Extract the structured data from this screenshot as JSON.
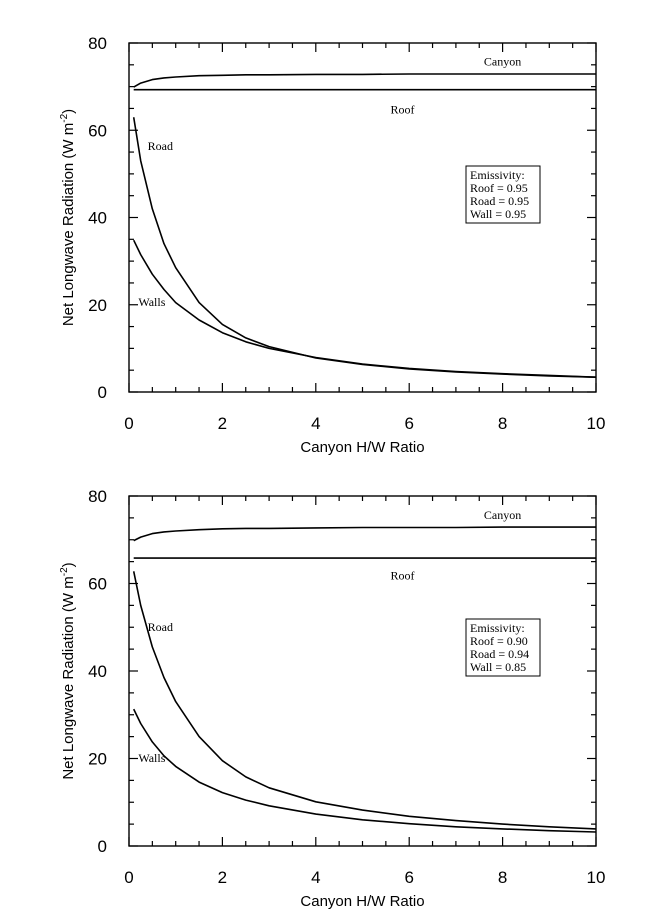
{
  "chart_data": [
    {
      "type": "line",
      "xlabel": "Canyon H/W Ratio",
      "ylabel": "Net Longwave Radiation (W m",
      "ylabel_sup": "-2",
      "ylabel_close": ")",
      "xlim": [
        0,
        10
      ],
      "ylim": [
        0,
        80
      ],
      "xticks": [
        0,
        2,
        4,
        6,
        8,
        10
      ],
      "yticks": [
        0,
        20,
        40,
        60,
        80
      ],
      "x": [
        0.1,
        0.25,
        0.5,
        0.75,
        1,
        1.5,
        2,
        2.5,
        3,
        4,
        5,
        6,
        7,
        8,
        9,
        10
      ],
      "series": [
        {
          "name": "Canyon",
          "values": [
            69.9,
            70.8,
            71.6,
            72.0,
            72.2,
            72.5,
            72.6,
            72.7,
            72.7,
            72.8,
            72.8,
            72.9,
            72.9,
            72.9,
            72.9,
            72.9
          ]
        },
        {
          "name": "Roof",
          "values": [
            69.3,
            69.3,
            69.3,
            69.3,
            69.3,
            69.3,
            69.3,
            69.3,
            69.3,
            69.3,
            69.3,
            69.3,
            69.3,
            69.3,
            69.3,
            69.3
          ]
        },
        {
          "name": "Road",
          "values": [
            63.0,
            53.0,
            42.0,
            34.0,
            28.5,
            20.5,
            15.5,
            12.4,
            10.4,
            7.8,
            6.3,
            5.3,
            4.6,
            4.1,
            3.7,
            3.4
          ]
        },
        {
          "name": "Walls",
          "values": [
            34.8,
            31.5,
            27.0,
            23.5,
            20.5,
            16.5,
            13.6,
            11.5,
            10.0,
            7.9,
            6.4,
            5.4,
            4.7,
            4.2,
            3.8,
            3.4
          ]
        }
      ],
      "series_labels": {
        "Canyon": "Canyon",
        "Roof": "Roof",
        "Road": "Road",
        "Walls": "Walls"
      },
      "legend": {
        "title": "Emissivity:",
        "lines": [
          "Roof = 0.95",
          "Road = 0.95",
          "Wall = 0.95"
        ],
        "placement": "right"
      },
      "grid": false
    },
    {
      "type": "line",
      "xlabel": "Canyon H/W Ratio",
      "ylabel": "Net Longwave Radiation (W m",
      "ylabel_sup": "-2",
      "ylabel_close": ")",
      "xlim": [
        0,
        10
      ],
      "ylim": [
        0,
        80
      ],
      "xticks": [
        0,
        2,
        4,
        6,
        8,
        10
      ],
      "yticks": [
        0,
        20,
        40,
        60,
        80
      ],
      "x": [
        0.1,
        0.25,
        0.5,
        0.75,
        1,
        1.5,
        2,
        2.5,
        3,
        4,
        5,
        6,
        7,
        8,
        9,
        10
      ],
      "series": [
        {
          "name": "Canyon",
          "values": [
            69.8,
            70.6,
            71.4,
            71.8,
            72.0,
            72.3,
            72.5,
            72.6,
            72.6,
            72.7,
            72.8,
            72.8,
            72.8,
            72.9,
            72.9,
            72.9
          ]
        },
        {
          "name": "Roof",
          "values": [
            65.8,
            65.8,
            65.8,
            65.8,
            65.8,
            65.8,
            65.8,
            65.8,
            65.8,
            65.8,
            65.8,
            65.8,
            65.8,
            65.8,
            65.8,
            65.8
          ]
        },
        {
          "name": "Road",
          "values": [
            62.8,
            55.0,
            45.5,
            38.5,
            33.0,
            25.0,
            19.5,
            15.8,
            13.3,
            10.1,
            8.2,
            6.8,
            5.8,
            5.0,
            4.4,
            3.9
          ]
        },
        {
          "name": "Walls",
          "values": [
            31.3,
            28.0,
            23.8,
            20.6,
            18.2,
            14.6,
            12.2,
            10.5,
            9.2,
            7.3,
            6.0,
            5.1,
            4.4,
            3.9,
            3.5,
            3.2
          ]
        }
      ],
      "series_labels": {
        "Canyon": "Canyon",
        "Roof": "Roof",
        "Road": "Road",
        "Walls": "Walls"
      },
      "legend": {
        "title": "Emissivity:",
        "lines": [
          "Roof = 0.90",
          "Road = 0.94",
          "Wall = 0.85"
        ],
        "placement": "right"
      },
      "grid": false
    }
  ]
}
